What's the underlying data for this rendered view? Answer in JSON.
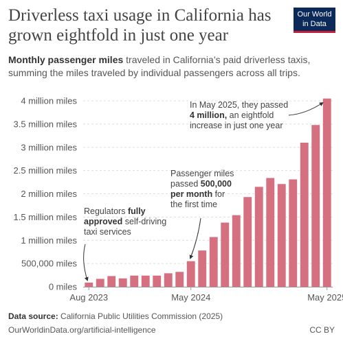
{
  "title": "Driverless taxi usage in California has grown eightfold in just one year",
  "logo": {
    "line1": "Our World",
    "line2": "in Data"
  },
  "subtitle": {
    "bold": "Monthly passenger miles",
    "rest": " traveled in California’s paid driverless taxis, summing the miles traveled by individual passengers across all trips."
  },
  "footer": {
    "source_label": "Data source:",
    "source_text": " California Public Utilities Commission (2025)",
    "url": "OurWorldinData.org/artificial-intelligence",
    "license": "CC BY"
  },
  "chart_data": {
    "type": "bar",
    "title": "",
    "xlabel": "",
    "ylabel": "",
    "ylim": [
      0,
      4000000
    ],
    "y_ticks": [
      {
        "value": 0,
        "label": "0 miles"
      },
      {
        "value": 500000,
        "label": "500,000 miles"
      },
      {
        "value": 1000000,
        "label": "1 million miles"
      },
      {
        "value": 1500000,
        "label": "1.5 million miles"
      },
      {
        "value": 2000000,
        "label": "2 million miles"
      },
      {
        "value": 2500000,
        "label": "2.5 million miles"
      },
      {
        "value": 3000000,
        "label": "3 million miles"
      },
      {
        "value": 3500000,
        "label": "3.5 million miles"
      },
      {
        "value": 4000000,
        "label": "4 million miles"
      }
    ],
    "x_ticks": [
      {
        "index": 0,
        "label": "Aug 2023"
      },
      {
        "index": 9,
        "label": "May 2024"
      },
      {
        "index": 21,
        "label": "May 2025"
      }
    ],
    "grid": true,
    "bar_color": "#d4707f",
    "categories": [
      "Aug 2023",
      "Sep 2023",
      "Oct 2023",
      "Nov 2023",
      "Dec 2023",
      "Jan 2024",
      "Feb 2024",
      "Mar 2024",
      "Apr 2024",
      "May 2024",
      "Jun 2024",
      "Jul 2024",
      "Aug 2024",
      "Sep 2024",
      "Oct 2024",
      "Nov 2024",
      "Dec 2024",
      "Jan 2025",
      "Feb 2025",
      "Mar 2025",
      "Apr 2025",
      "May 2025"
    ],
    "values": [
      90000,
      170000,
      230000,
      180000,
      240000,
      240000,
      240000,
      290000,
      320000,
      550000,
      780000,
      1070000,
      1380000,
      1540000,
      1930000,
      2150000,
      2340000,
      2210000,
      2310000,
      3100000,
      3480000,
      4050000
    ],
    "annotations": [
      {
        "index": 0,
        "lines": [
          [
            {
              "t": "Regulators ",
              "b": false
            },
            {
              "t": "fully",
              "b": true
            }
          ],
          [
            {
              "t": "approved",
              "b": true
            },
            {
              "t": " self-driving",
              "b": false
            }
          ],
          [
            {
              "t": "taxi services",
              "b": false
            }
          ]
        ]
      },
      {
        "index": 9,
        "lines": [
          [
            {
              "t": "Passenger miles",
              "b": false
            }
          ],
          [
            {
              "t": "passed ",
              "b": false
            },
            {
              "t": "500,000",
              "b": true
            }
          ],
          [
            {
              "t": "per month",
              "b": true
            },
            {
              "t": " for",
              "b": false
            }
          ],
          [
            {
              "t": "the first time",
              "b": false
            }
          ]
        ]
      },
      {
        "index": 21,
        "lines": [
          [
            {
              "t": "In May 2025, they passed",
              "b": false
            }
          ],
          [
            {
              "t": "4 million,",
              "b": true
            },
            {
              "t": " an eightfold",
              "b": false
            }
          ],
          [
            {
              "t": "increase in just one year",
              "b": false
            }
          ]
        ]
      }
    ]
  }
}
